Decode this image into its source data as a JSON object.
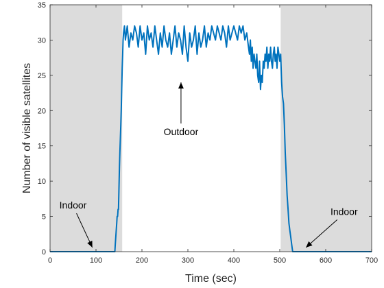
{
  "chart_data": {
    "type": "line",
    "title": "",
    "xlabel": "Time (sec)",
    "ylabel": "Number of visible satellites",
    "xlim": [
      0,
      700
    ],
    "ylim": [
      0,
      35
    ],
    "xticks": [
      0,
      100,
      200,
      300,
      400,
      500,
      600,
      700
    ],
    "yticks": [
      0,
      5,
      10,
      15,
      20,
      25,
      30,
      35
    ],
    "grid": false,
    "shaded_regions": [
      {
        "x_start": 0,
        "x_end": 157,
        "color": "#dcdcdc"
      },
      {
        "x_start": 502,
        "x_end": 700,
        "color": "#dcdcdc"
      }
    ],
    "series": [
      {
        "color": "#0072BD",
        "x": [
          0,
          141,
          142,
          143,
          144,
          145,
          146,
          147,
          148,
          149,
          150,
          151,
          152,
          153,
          154,
          155,
          156,
          157,
          158,
          159,
          160,
          162,
          164,
          168,
          172,
          176,
          180,
          184,
          188,
          192,
          196,
          200,
          204,
          208,
          212,
          216,
          220,
          224,
          228,
          232,
          236,
          240,
          244,
          248,
          252,
          256,
          260,
          264,
          268,
          272,
          276,
          280,
          284,
          288,
          292,
          296,
          300,
          304,
          308,
          312,
          316,
          320,
          324,
          328,
          332,
          336,
          340,
          344,
          348,
          352,
          356,
          360,
          364,
          368,
          372,
          376,
          380,
          384,
          388,
          392,
          396,
          400,
          404,
          408,
          412,
          416,
          420,
          424,
          428,
          432,
          434,
          436,
          438,
          440,
          442,
          444,
          446,
          448,
          450,
          452,
          454,
          456,
          458,
          460,
          462,
          464,
          466,
          468,
          470,
          472,
          474,
          476,
          478,
          480,
          482,
          484,
          486,
          488,
          490,
          492,
          494,
          496,
          498,
          500,
          502,
          504,
          506,
          508,
          510,
          512,
          514,
          516,
          518,
          520,
          522,
          524,
          526,
          528,
          530,
          700
        ],
        "y": [
          0,
          0,
          1,
          2,
          3,
          4,
          5,
          5,
          6,
          6,
          9,
          12,
          14,
          16,
          18,
          20,
          23,
          26,
          28,
          30,
          31,
          32,
          30,
          32,
          29,
          31,
          30,
          32,
          31,
          29,
          32,
          30,
          31,
          28,
          32,
          30,
          31,
          29,
          32,
          30,
          28,
          31,
          29,
          32,
          30,
          29,
          31,
          28,
          30,
          32,
          29,
          31,
          30,
          28,
          32,
          29,
          27,
          31,
          29,
          30,
          32,
          28,
          31,
          29,
          30,
          32,
          29,
          31,
          30,
          32,
          31,
          30,
          32,
          31,
          30,
          32,
          31,
          29,
          32,
          30,
          31,
          32,
          31,
          30,
          32,
          31,
          32,
          30,
          31,
          29,
          28,
          30,
          27,
          29,
          26,
          28,
          27,
          26,
          28,
          25,
          24,
          27,
          23,
          25,
          24,
          27,
          26,
          28,
          27,
          29,
          26,
          28,
          27,
          29,
          27,
          26,
          28,
          29,
          27,
          28,
          26,
          29,
          28,
          27,
          28,
          24,
          22,
          21,
          18,
          14,
          11,
          8,
          6,
          4,
          3,
          2,
          1,
          0,
          0,
          0
        ]
      }
    ],
    "annotations": [
      {
        "text": "Outdoor",
        "text_x": 285,
        "text_y": 17,
        "arrow_x": 285,
        "arrow_y": 24
      },
      {
        "text": "Indoor",
        "text_x": 50,
        "text_y": 6.6,
        "arrow_x": 92,
        "arrow_y": 0.6
      },
      {
        "text": "Indoor",
        "text_x": 640,
        "text_y": 5.7,
        "arrow_x": 557,
        "arrow_y": 0.6
      }
    ]
  }
}
